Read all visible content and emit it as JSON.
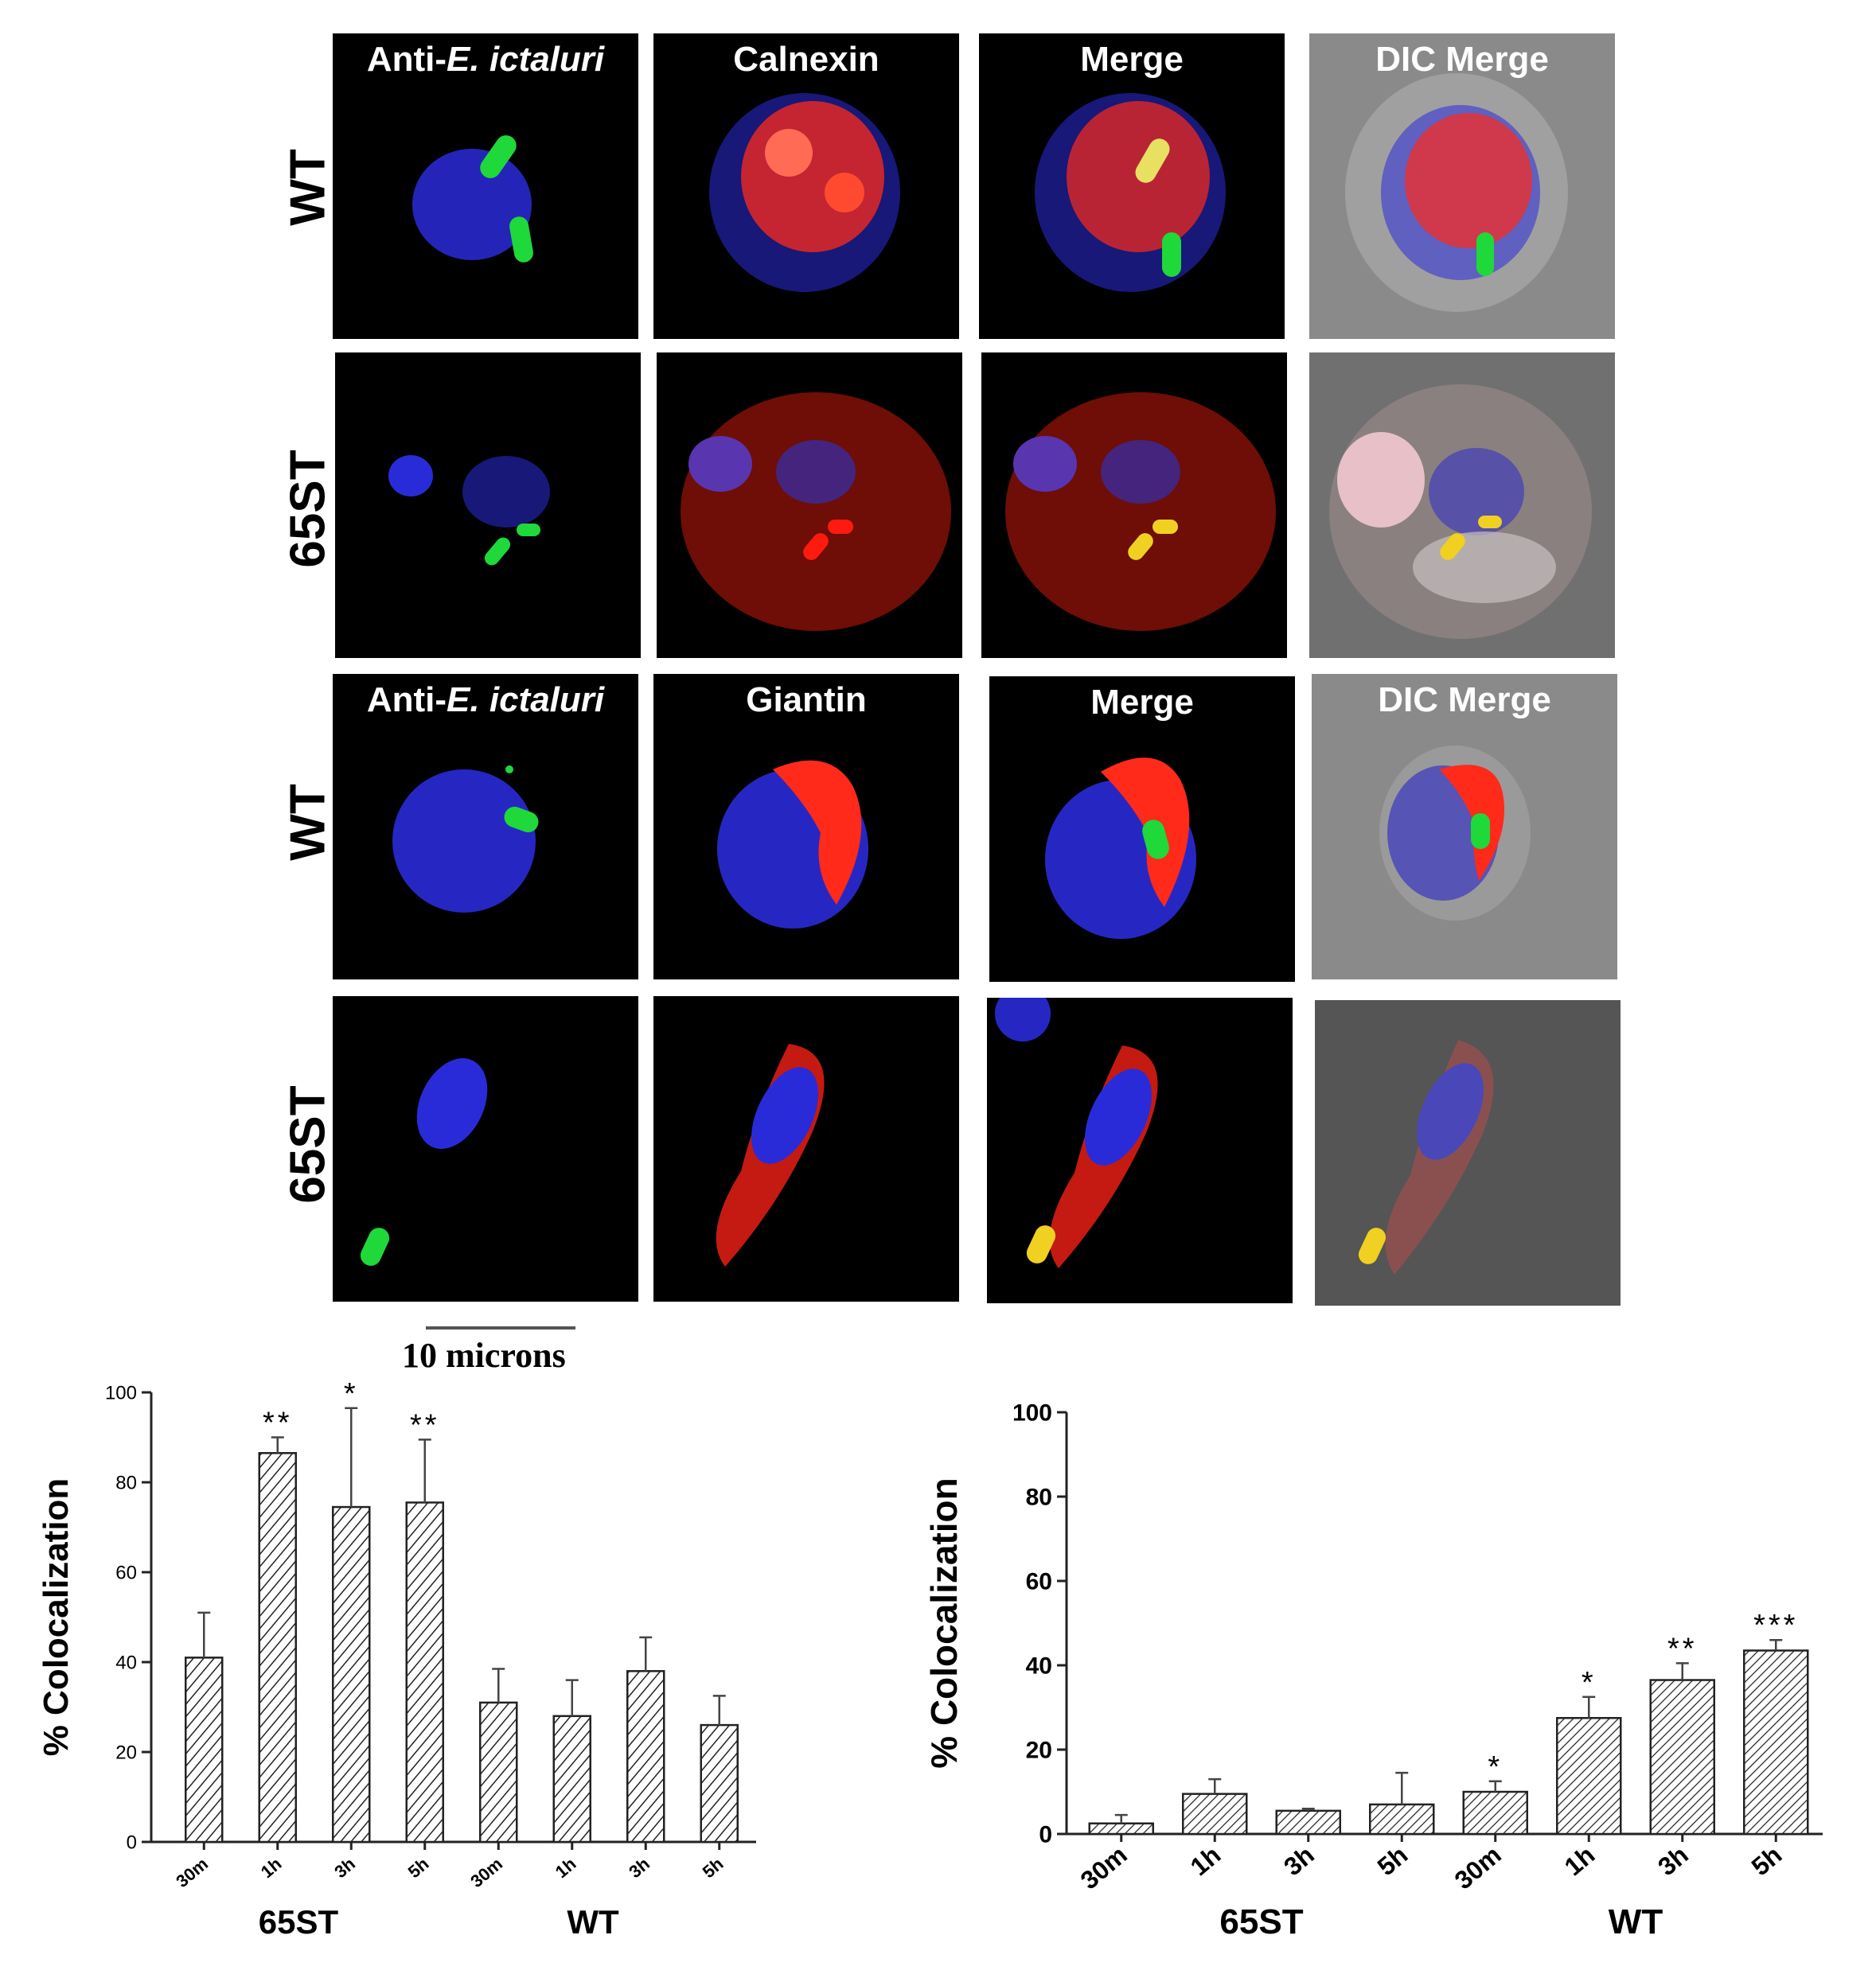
{
  "figure": {
    "row_labels": [
      "WT",
      "65ST",
      "WT",
      "65ST"
    ],
    "section_top": {
      "titles": {
        "col1_prefix": "Anti-",
        "col1_italic": "E. ictaluri",
        "col2": "Calnexin",
        "col3": "Merge",
        "col4": "DIC Merge"
      }
    },
    "section_bottom": {
      "titles": {
        "col1_prefix": "Anti-",
        "col1_italic": "E. ictaluri",
        "col2": "Giantin",
        "col3": "Merge",
        "col4": "DIC Merge"
      }
    },
    "scale_bar": {
      "label": "10 microns"
    },
    "colors": {
      "nucleus": "#2a2bd8",
      "bacteria": "#1fd83a",
      "marker": "#ff2a1a",
      "dic_bg": "#8a8a8a"
    }
  },
  "chart_data": [
    {
      "type": "bar",
      "ylabel": "% Colocalization",
      "ylim": [
        0,
        100
      ],
      "yticks": [
        0,
        20,
        40,
        60,
        80,
        100
      ],
      "categories": [
        "30m",
        "1h",
        "3h",
        "5h",
        "30m",
        "1h",
        "3h",
        "5h"
      ],
      "groups": [
        "65ST",
        "WT"
      ],
      "values": [
        41,
        86.5,
        74.5,
        75.5,
        31,
        28,
        38,
        26
      ],
      "errors": [
        10,
        3.5,
        22,
        14,
        7.5,
        8,
        7.5,
        6.5
      ],
      "significance": [
        "",
        "**",
        "*",
        "**",
        "",
        "",
        "",
        ""
      ]
    },
    {
      "type": "bar",
      "ylabel": "% Colocalization",
      "ylim": [
        0,
        100
      ],
      "yticks": [
        0,
        20,
        40,
        60,
        80,
        100
      ],
      "categories": [
        "30m",
        "1h",
        "3h",
        "5h",
        "30m",
        "1h",
        "3h",
        "5h"
      ],
      "groups": [
        "65ST",
        "WT"
      ],
      "values": [
        2.5,
        9.5,
        5.5,
        7,
        10,
        27.5,
        36.5,
        43.5
      ],
      "errors": [
        2,
        3.5,
        0.5,
        7.5,
        2.5,
        5,
        4,
        2.5
      ],
      "significance": [
        "",
        "",
        "",
        "",
        "*",
        "*",
        "**",
        "***"
      ]
    }
  ]
}
